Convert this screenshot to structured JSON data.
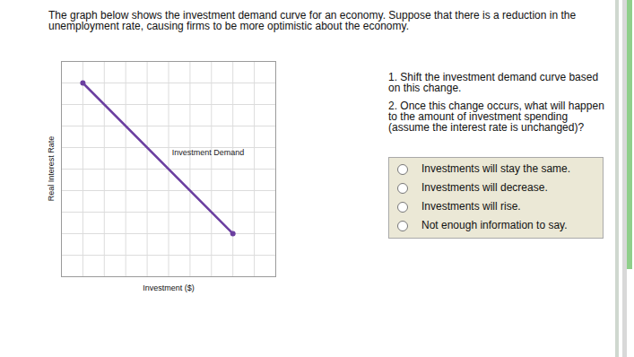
{
  "header": {
    "text": "The graph below shows the investment demand curve for an economy. Suppose that there is a reduction in the unemployment rate, causing firms to be more optimistic about the economy."
  },
  "chart_data": {
    "type": "line",
    "x_label": "Investment ($)",
    "y_label": "Real Interest Rate",
    "xlim": [
      0,
      10
    ],
    "ylim": [
      0,
      10
    ],
    "xticks": [
      0,
      1,
      2,
      3,
      4,
      5,
      6,
      7,
      8,
      9,
      10
    ],
    "yticks": [
      0,
      1,
      2,
      3,
      4,
      5,
      6,
      7,
      8,
      9,
      10
    ],
    "grid": true,
    "tick_labels": false,
    "x": [
      1,
      8
    ],
    "series": [
      {
        "name": "Investment Demand",
        "color": "#6b3fa0",
        "values": [
          9,
          2
        ],
        "marker": "circle"
      }
    ],
    "annotations": [
      "Investment Demand"
    ]
  },
  "questions": [
    "1. Shift the investment demand curve based on this change.",
    "2. Once this change occurs, what will happen to the amount of investment spending (assume the interest rate is unchanged)?"
  ],
  "options": [
    "Investments will stay the same.",
    "Investments will decrease.",
    "Investments will rise.",
    "Not enough information to say."
  ]
}
